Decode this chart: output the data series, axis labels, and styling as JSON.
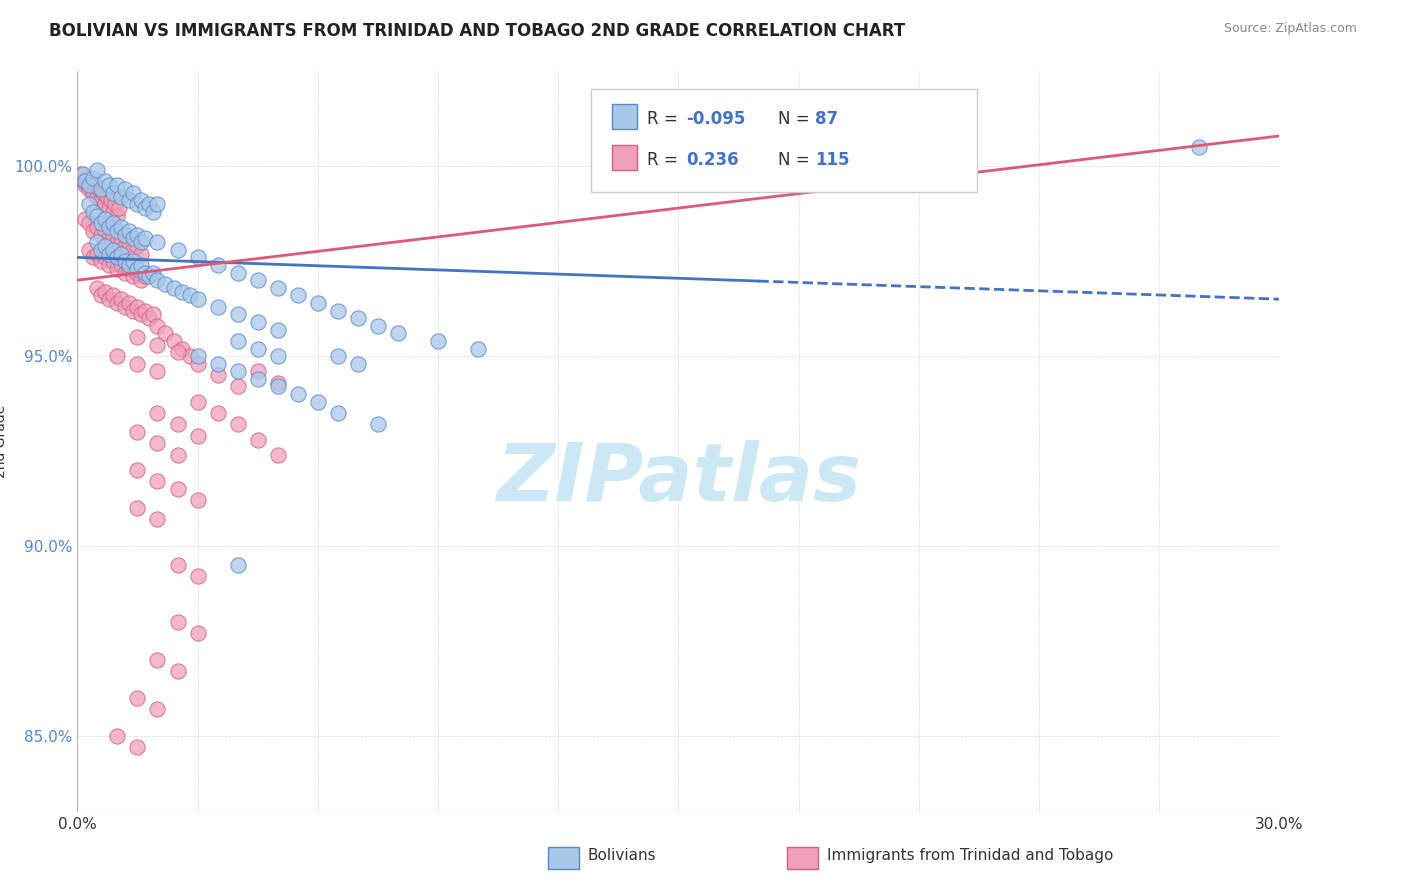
{
  "title": "BOLIVIAN VS IMMIGRANTS FROM TRINIDAD AND TOBAGO 2ND GRADE CORRELATION CHART",
  "source": "Source: ZipAtlas.com",
  "ylabel_label": "2nd Grade",
  "xlim": [
    0.0,
    30.0
  ],
  "ylim": [
    83.0,
    102.5
  ],
  "yticks": [
    85.0,
    90.0,
    95.0,
    100.0
  ],
  "ytick_labels": [
    "85.0%",
    "90.0%",
    "95.0%",
    "100.0%"
  ],
  "blue_y0": 97.6,
  "blue_y1": 96.5,
  "pink_y0": 97.0,
  "pink_y1": 100.8,
  "blue_solid_end": 17.0,
  "blue_scatter": [
    [
      0.15,
      99.8
    ],
    [
      0.2,
      99.6
    ],
    [
      0.3,
      99.5
    ],
    [
      0.4,
      99.7
    ],
    [
      0.5,
      99.9
    ],
    [
      0.6,
      99.4
    ],
    [
      0.7,
      99.6
    ],
    [
      0.8,
      99.5
    ],
    [
      0.9,
      99.3
    ],
    [
      1.0,
      99.5
    ],
    [
      1.1,
      99.2
    ],
    [
      1.2,
      99.4
    ],
    [
      1.3,
      99.1
    ],
    [
      1.4,
      99.3
    ],
    [
      1.5,
      99.0
    ],
    [
      1.6,
      99.1
    ],
    [
      1.7,
      98.9
    ],
    [
      1.8,
      99.0
    ],
    [
      1.9,
      98.8
    ],
    [
      2.0,
      99.0
    ],
    [
      0.3,
      99.0
    ],
    [
      0.4,
      98.8
    ],
    [
      0.5,
      98.7
    ],
    [
      0.6,
      98.5
    ],
    [
      0.7,
      98.6
    ],
    [
      0.8,
      98.4
    ],
    [
      0.9,
      98.5
    ],
    [
      1.0,
      98.3
    ],
    [
      1.1,
      98.4
    ],
    [
      1.2,
      98.2
    ],
    [
      1.3,
      98.3
    ],
    [
      1.4,
      98.1
    ],
    [
      1.5,
      98.2
    ],
    [
      1.6,
      98.0
    ],
    [
      1.7,
      98.1
    ],
    [
      0.5,
      98.0
    ],
    [
      0.6,
      97.8
    ],
    [
      0.7,
      97.9
    ],
    [
      0.8,
      97.7
    ],
    [
      0.9,
      97.8
    ],
    [
      1.0,
      97.6
    ],
    [
      1.1,
      97.7
    ],
    [
      1.2,
      97.5
    ],
    [
      1.3,
      97.4
    ],
    [
      1.4,
      97.5
    ],
    [
      1.5,
      97.3
    ],
    [
      1.6,
      97.4
    ],
    [
      1.7,
      97.2
    ],
    [
      1.8,
      97.1
    ],
    [
      1.9,
      97.2
    ],
    [
      2.0,
      97.0
    ],
    [
      2.2,
      96.9
    ],
    [
      2.4,
      96.8
    ],
    [
      2.6,
      96.7
    ],
    [
      2.8,
      96.6
    ],
    [
      3.0,
      96.5
    ],
    [
      3.5,
      96.3
    ],
    [
      4.0,
      96.1
    ],
    [
      4.5,
      95.9
    ],
    [
      5.0,
      95.7
    ],
    [
      2.0,
      98.0
    ],
    [
      2.5,
      97.8
    ],
    [
      3.0,
      97.6
    ],
    [
      3.5,
      97.4
    ],
    [
      4.0,
      97.2
    ],
    [
      4.5,
      97.0
    ],
    [
      5.0,
      96.8
    ],
    [
      5.5,
      96.6
    ],
    [
      6.0,
      96.4
    ],
    [
      6.5,
      96.2
    ],
    [
      7.0,
      96.0
    ],
    [
      7.5,
      95.8
    ],
    [
      8.0,
      95.6
    ],
    [
      9.0,
      95.4
    ],
    [
      10.0,
      95.2
    ],
    [
      3.0,
      95.0
    ],
    [
      3.5,
      94.8
    ],
    [
      4.0,
      94.6
    ],
    [
      4.5,
      94.4
    ],
    [
      5.0,
      94.2
    ],
    [
      5.5,
      94.0
    ],
    [
      6.0,
      93.8
    ],
    [
      6.5,
      93.5
    ],
    [
      7.5,
      93.2
    ],
    [
      4.0,
      95.4
    ],
    [
      4.5,
      95.2
    ],
    [
      5.0,
      95.0
    ],
    [
      6.5,
      95.0
    ],
    [
      7.0,
      94.8
    ],
    [
      28.0,
      100.5
    ],
    [
      4.0,
      89.5
    ]
  ],
  "pink_scatter": [
    [
      0.1,
      99.8
    ],
    [
      0.15,
      99.6
    ],
    [
      0.2,
      99.5
    ],
    [
      0.25,
      99.7
    ],
    [
      0.3,
      99.4
    ],
    [
      0.35,
      99.6
    ],
    [
      0.4,
      99.3
    ],
    [
      0.45,
      99.5
    ],
    [
      0.5,
      99.2
    ],
    [
      0.55,
      99.4
    ],
    [
      0.6,
      99.1
    ],
    [
      0.65,
      99.3
    ],
    [
      0.7,
      99.0
    ],
    [
      0.75,
      99.2
    ],
    [
      0.8,
      98.9
    ],
    [
      0.85,
      99.1
    ],
    [
      0.9,
      98.8
    ],
    [
      0.95,
      99.0
    ],
    [
      1.0,
      98.7
    ],
    [
      1.05,
      98.9
    ],
    [
      0.2,
      98.6
    ],
    [
      0.3,
      98.5
    ],
    [
      0.4,
      98.3
    ],
    [
      0.5,
      98.4
    ],
    [
      0.6,
      98.2
    ],
    [
      0.7,
      98.3
    ],
    [
      0.8,
      98.1
    ],
    [
      0.9,
      98.2
    ],
    [
      1.0,
      98.0
    ],
    [
      1.1,
      98.1
    ],
    [
      1.2,
      97.9
    ],
    [
      1.3,
      98.0
    ],
    [
      1.4,
      97.8
    ],
    [
      1.5,
      97.9
    ],
    [
      1.6,
      97.7
    ],
    [
      0.3,
      97.8
    ],
    [
      0.4,
      97.6
    ],
    [
      0.5,
      97.7
    ],
    [
      0.6,
      97.5
    ],
    [
      0.7,
      97.6
    ],
    [
      0.8,
      97.4
    ],
    [
      0.9,
      97.5
    ],
    [
      1.0,
      97.3
    ],
    [
      1.1,
      97.4
    ],
    [
      1.2,
      97.2
    ],
    [
      1.3,
      97.3
    ],
    [
      1.4,
      97.1
    ],
    [
      1.5,
      97.2
    ],
    [
      1.6,
      97.0
    ],
    [
      1.7,
      97.1
    ],
    [
      0.5,
      96.8
    ],
    [
      0.6,
      96.6
    ],
    [
      0.7,
      96.7
    ],
    [
      0.8,
      96.5
    ],
    [
      0.9,
      96.6
    ],
    [
      1.0,
      96.4
    ],
    [
      1.1,
      96.5
    ],
    [
      1.2,
      96.3
    ],
    [
      1.3,
      96.4
    ],
    [
      1.4,
      96.2
    ],
    [
      1.5,
      96.3
    ],
    [
      1.6,
      96.1
    ],
    [
      1.7,
      96.2
    ],
    [
      1.8,
      96.0
    ],
    [
      1.9,
      96.1
    ],
    [
      2.0,
      95.8
    ],
    [
      2.2,
      95.6
    ],
    [
      2.4,
      95.4
    ],
    [
      2.6,
      95.2
    ],
    [
      2.8,
      95.0
    ],
    [
      3.0,
      94.8
    ],
    [
      3.5,
      94.5
    ],
    [
      4.0,
      94.2
    ],
    [
      1.5,
      95.5
    ],
    [
      2.0,
      95.3
    ],
    [
      2.5,
      95.1
    ],
    [
      1.0,
      95.0
    ],
    [
      1.5,
      94.8
    ],
    [
      2.0,
      94.6
    ],
    [
      2.0,
      93.5
    ],
    [
      2.5,
      93.2
    ],
    [
      3.0,
      92.9
    ],
    [
      1.5,
      93.0
    ],
    [
      2.0,
      92.7
    ],
    [
      2.5,
      92.4
    ],
    [
      1.5,
      92.0
    ],
    [
      2.0,
      91.7
    ],
    [
      1.5,
      91.0
    ],
    [
      2.0,
      90.7
    ],
    [
      2.5,
      91.5
    ],
    [
      3.0,
      91.2
    ],
    [
      3.0,
      93.8
    ],
    [
      3.5,
      93.5
    ],
    [
      4.0,
      93.2
    ],
    [
      4.5,
      92.8
    ],
    [
      5.0,
      92.4
    ],
    [
      2.5,
      89.5
    ],
    [
      3.0,
      89.2
    ],
    [
      2.5,
      88.0
    ],
    [
      3.0,
      87.7
    ],
    [
      2.0,
      87.0
    ],
    [
      2.5,
      86.7
    ],
    [
      1.5,
      86.0
    ],
    [
      2.0,
      85.7
    ],
    [
      1.0,
      85.0
    ],
    [
      1.5,
      84.7
    ],
    [
      4.5,
      94.6
    ],
    [
      5.0,
      94.3
    ]
  ],
  "watermark_text": "ZIPatlas",
  "watermark_color": "#cce8f4",
  "background_color": "#ffffff",
  "grid_color": "#cccccc",
  "scatter_blue_face": "#a8c8e8",
  "scatter_blue_edge": "#5588cc",
  "scatter_pink_face": "#f0a0b8",
  "scatter_pink_edge": "#d06080",
  "trend_blue_color": "#4472C4",
  "trend_pink_color": "#e05878"
}
